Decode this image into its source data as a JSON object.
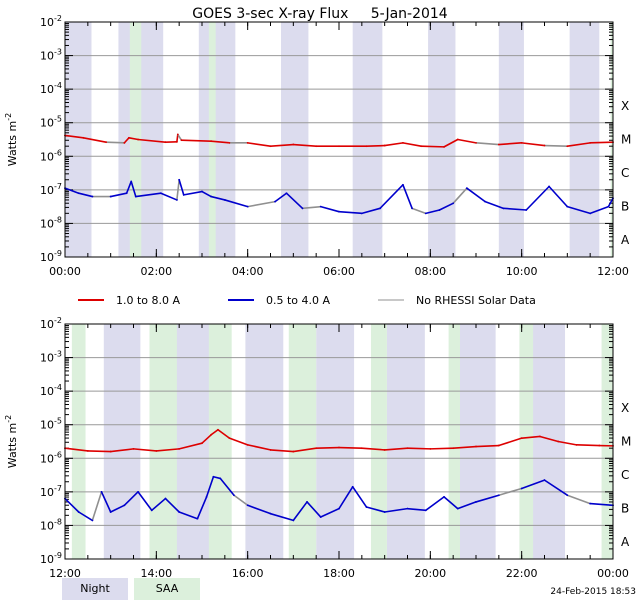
{
  "chart_data": [
    {
      "type": "line",
      "panel": "top",
      "title": "GOES 3-sec X-ray Flux     5-Jan-2014",
      "ylabel": "Watts m-2",
      "y_scale": "log",
      "ylim_exponents": [
        -9,
        -2
      ],
      "y_tick_labels": [
        "10-2",
        "10-3",
        "10-4",
        "10-5",
        "10-6",
        "10-7",
        "10-8",
        "10-9"
      ],
      "x_range_hours": [
        0,
        12
      ],
      "x_tick_labels": [
        "00:00",
        "02:00",
        "04:00",
        "06:00",
        "08:00",
        "10:00",
        "12:00"
      ],
      "flare_classes": [
        "X",
        "M",
        "C",
        "B",
        "A"
      ],
      "night_intervals_hours": [
        [
          0,
          0.58
        ],
        [
          1.17,
          2.15
        ],
        [
          2.93,
          3.73
        ],
        [
          4.73,
          5.33
        ],
        [
          6.3,
          6.95
        ],
        [
          7.95,
          8.55
        ],
        [
          9.5,
          10.05
        ],
        [
          11.05,
          11.7
        ]
      ],
      "saa_intervals_hours": [
        [
          1.42,
          1.67
        ],
        [
          3.15,
          3.3
        ],
        [
          11.95,
          12
        ]
      ],
      "series": [
        {
          "name": "1.0 to 8.0 A",
          "color": "#dd0000",
          "points": [
            [
              0,
              -5.38
            ],
            [
              0.4,
              -5.45
            ],
            [
              0.9,
              -5.58
            ],
            [
              1.3,
              -5.6
            ],
            [
              1.4,
              -5.45
            ],
            [
              1.6,
              -5.5
            ],
            [
              2.2,
              -5.58
            ],
            [
              2.45,
              -5.57
            ],
            [
              2.47,
              -5.35
            ],
            [
              2.55,
              -5.52
            ],
            [
              3.2,
              -5.55
            ],
            [
              3.6,
              -5.6
            ],
            [
              4.0,
              -5.6
            ],
            [
              4.5,
              -5.7
            ],
            [
              5.0,
              -5.65
            ],
            [
              5.5,
              -5.7
            ],
            [
              6.0,
              -5.7
            ],
            [
              6.6,
              -5.7
            ],
            [
              7.0,
              -5.68
            ],
            [
              7.4,
              -5.6
            ],
            [
              7.8,
              -5.7
            ],
            [
              8.3,
              -5.72
            ],
            [
              8.6,
              -5.5
            ],
            [
              9.0,
              -5.6
            ],
            [
              9.5,
              -5.65
            ],
            [
              10.0,
              -5.6
            ],
            [
              10.5,
              -5.68
            ],
            [
              11.0,
              -5.7
            ],
            [
              11.5,
              -5.6
            ],
            [
              12,
              -5.58
            ]
          ]
        },
        {
          "name": "0.5 to 4.0 A",
          "color": "#0000cc",
          "points": [
            [
              0,
              -6.95
            ],
            [
              0.3,
              -7.1
            ],
            [
              0.6,
              -7.2
            ],
            [
              1.0,
              -7.2
            ],
            [
              1.35,
              -7.1
            ],
            [
              1.45,
              -6.75
            ],
            [
              1.55,
              -7.2
            ],
            [
              2.1,
              -7.1
            ],
            [
              2.45,
              -7.3
            ],
            [
              2.5,
              -6.7
            ],
            [
              2.6,
              -7.15
            ],
            [
              3.0,
              -7.05
            ],
            [
              3.2,
              -7.2
            ],
            [
              3.5,
              -7.3
            ],
            [
              4.0,
              -7.5
            ],
            [
              4.6,
              -7.35
            ],
            [
              4.85,
              -7.1
            ],
            [
              5.2,
              -7.55
            ],
            [
              5.6,
              -7.5
            ],
            [
              6.0,
              -7.65
            ],
            [
              6.5,
              -7.7
            ],
            [
              6.9,
              -7.55
            ],
            [
              7.4,
              -6.85
            ],
            [
              7.6,
              -7.55
            ],
            [
              7.9,
              -7.7
            ],
            [
              8.2,
              -7.6
            ],
            [
              8.5,
              -7.4
            ],
            [
              8.8,
              -6.95
            ],
            [
              9.2,
              -7.35
            ],
            [
              9.6,
              -7.55
            ],
            [
              10.1,
              -7.6
            ],
            [
              10.6,
              -6.9
            ],
            [
              11.0,
              -7.5
            ],
            [
              11.5,
              -7.7
            ],
            [
              11.9,
              -7.5
            ],
            [
              12,
              -7.25
            ]
          ]
        }
      ]
    },
    {
      "type": "line",
      "panel": "bottom",
      "title": "",
      "ylabel": "Watts m-2",
      "y_scale": "log",
      "ylim_exponents": [
        -9,
        -2
      ],
      "y_tick_labels": [
        "10-2",
        "10-3",
        "10-4",
        "10-5",
        "10-6",
        "10-7",
        "10-8",
        "10-9"
      ],
      "x_range_hours": [
        12,
        24
      ],
      "x_tick_labels": [
        "12:00",
        "14:00",
        "16:00",
        "18:00",
        "20:00",
        "22:00",
        "00:00"
      ],
      "flare_classes": [
        "X",
        "M",
        "C",
        "B",
        "A"
      ],
      "night_intervals_hours": [
        [
          12.85,
          13.65
        ],
        [
          14.4,
          15.2
        ],
        [
          15.95,
          16.78
        ],
        [
          17.5,
          18.33
        ],
        [
          19.05,
          19.88
        ],
        [
          20.6,
          21.43
        ],
        [
          22.15,
          22.95
        ]
      ],
      "saa_intervals_hours": [
        [
          12.15,
          12.45
        ],
        [
          13.85,
          14.45
        ],
        [
          15.15,
          15.65
        ],
        [
          16.9,
          17.5
        ],
        [
          18.7,
          19.05
        ],
        [
          20.4,
          20.65
        ],
        [
          21.95,
          22.25
        ],
        [
          23.75,
          24
        ]
      ],
      "series": [
        {
          "name": "1.0 to 8.0 A",
          "color": "#dd0000",
          "points": [
            [
              12,
              -5.7
            ],
            [
              12.5,
              -5.78
            ],
            [
              13.0,
              -5.8
            ],
            [
              13.5,
              -5.72
            ],
            [
              14.0,
              -5.78
            ],
            [
              14.5,
              -5.72
            ],
            [
              15.0,
              -5.55
            ],
            [
              15.2,
              -5.3
            ],
            [
              15.35,
              -5.15
            ],
            [
              15.6,
              -5.4
            ],
            [
              16.0,
              -5.6
            ],
            [
              16.5,
              -5.75
            ],
            [
              17.0,
              -5.8
            ],
            [
              17.5,
              -5.7
            ],
            [
              18.0,
              -5.68
            ],
            [
              18.5,
              -5.7
            ],
            [
              19.0,
              -5.75
            ],
            [
              19.5,
              -5.7
            ],
            [
              20.0,
              -5.72
            ],
            [
              20.5,
              -5.7
            ],
            [
              21.0,
              -5.65
            ],
            [
              21.5,
              -5.62
            ],
            [
              22.0,
              -5.4
            ],
            [
              22.4,
              -5.35
            ],
            [
              22.8,
              -5.5
            ],
            [
              23.2,
              -5.6
            ],
            [
              23.7,
              -5.62
            ],
            [
              24,
              -5.63
            ]
          ]
        },
        {
          "name": "0.5 to 4.0 A",
          "color": "#0000cc",
          "points": [
            [
              12,
              -7.2
            ],
            [
              12.3,
              -7.6
            ],
            [
              12.6,
              -7.85
            ],
            [
              12.8,
              -7.0
            ],
            [
              13.0,
              -7.6
            ],
            [
              13.3,
              -7.4
            ],
            [
              13.6,
              -7.0
            ],
            [
              13.9,
              -7.55
            ],
            [
              14.2,
              -7.2
            ],
            [
              14.5,
              -7.6
            ],
            [
              14.9,
              -7.8
            ],
            [
              15.1,
              -7.15
            ],
            [
              15.25,
              -6.55
            ],
            [
              15.4,
              -6.6
            ],
            [
              15.7,
              -7.1
            ],
            [
              16.0,
              -7.4
            ],
            [
              16.5,
              -7.65
            ],
            [
              17.0,
              -7.85
            ],
            [
              17.3,
              -7.3
            ],
            [
              17.6,
              -7.75
            ],
            [
              18.0,
              -7.5
            ],
            [
              18.3,
              -6.85
            ],
            [
              18.6,
              -7.45
            ],
            [
              19.0,
              -7.6
            ],
            [
              19.5,
              -7.5
            ],
            [
              19.9,
              -7.55
            ],
            [
              20.3,
              -7.15
            ],
            [
              20.6,
              -7.5
            ],
            [
              21.0,
              -7.3
            ],
            [
              21.5,
              -7.1
            ],
            [
              22.0,
              -6.9
            ],
            [
              22.5,
              -6.65
            ],
            [
              23.0,
              -7.1
            ],
            [
              23.5,
              -7.35
            ],
            [
              24,
              -7.4
            ]
          ]
        }
      ]
    }
  ],
  "legend": {
    "items": [
      {
        "label": "1.0 to 8.0 A",
        "color": "#dd0000"
      },
      {
        "label": "0.5 to 4.0 A",
        "color": "#0000cc"
      },
      {
        "label": "No RHESSI Solar Data",
        "color": "#909090"
      }
    ],
    "night_label": "Night",
    "saa_label": "SAA",
    "night_color": "#dcdcee",
    "saa_color": "#dcf0dc"
  },
  "timestamp": "24-Feb-2015 18:53"
}
